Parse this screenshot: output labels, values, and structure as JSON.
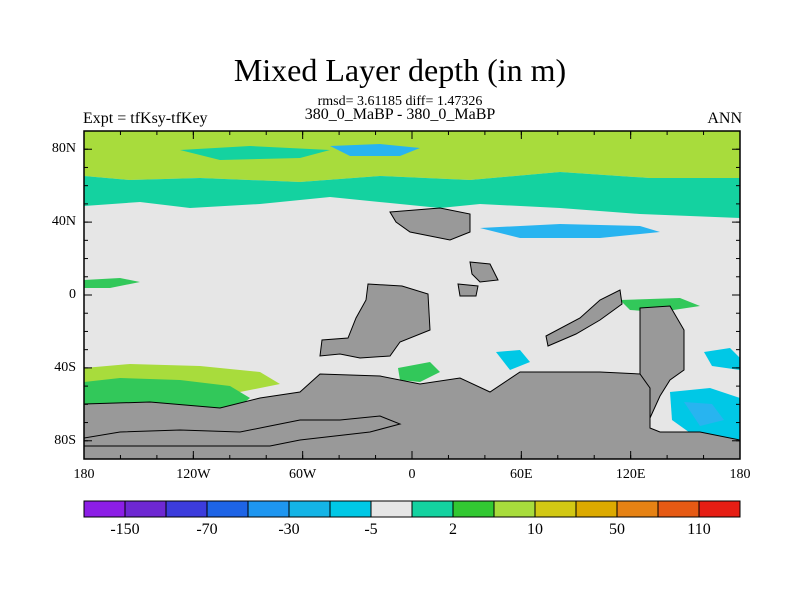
{
  "title": "Mixed Layer depth (in m)",
  "subtitle": "rmsd= 3.61185 diff= 1.47326",
  "left_label": "Expt = tfKsy-tfKey",
  "center_label": "380_0_MaBP - 380_0_MaBP",
  "right_label": "ANN",
  "map": {
    "lon_range": [
      -180,
      180
    ],
    "lat_range": [
      -90,
      90
    ],
    "y_ticks": [
      {
        "label": "80N",
        "lat": 80
      },
      {
        "label": "40N",
        "lat": 40
      },
      {
        "label": "0",
        "lat": 0
      },
      {
        "label": "40S",
        "lat": -40
      },
      {
        "label": "80S",
        "lat": -80
      }
    ],
    "x_ticks": [
      {
        "label": "180",
        "lon": -180
      },
      {
        "label": "120W",
        "lon": -120
      },
      {
        "label": "60W",
        "lon": -60
      },
      {
        "label": "0",
        "lon": 0
      },
      {
        "label": "60E",
        "lon": 60
      },
      {
        "label": "120E",
        "lon": 120
      },
      {
        "label": "180",
        "lon": 180
      }
    ],
    "colors": {
      "background": "#e6e6e6",
      "land": "#999999",
      "light_green": "#a8dc3c",
      "green": "#32c85a",
      "teal": "#14d2a0",
      "cyan": "#00c8e6",
      "light_cyan": "#28b4f0"
    }
  },
  "colorbar": {
    "colors": [
      "#8c1ee6",
      "#6e28d2",
      "#3c3cdc",
      "#1e64e6",
      "#1e96f0",
      "#14b4e6",
      "#00c8e6",
      "#e6e6e6",
      "#14d2a0",
      "#32c832",
      "#a8dc3c",
      "#d2c814",
      "#dcaa00",
      "#e68214",
      "#e65a14",
      "#e61e14"
    ],
    "labels": [
      {
        "text": "-150",
        "index": 1
      },
      {
        "text": "-70",
        "index": 3
      },
      {
        "text": "-30",
        "index": 5
      },
      {
        "text": "-5",
        "index": 7
      },
      {
        "text": "2",
        "index": 9
      },
      {
        "text": "10",
        "index": 11
      },
      {
        "text": "50",
        "index": 13
      },
      {
        "text": "110",
        "index": 15
      }
    ]
  }
}
